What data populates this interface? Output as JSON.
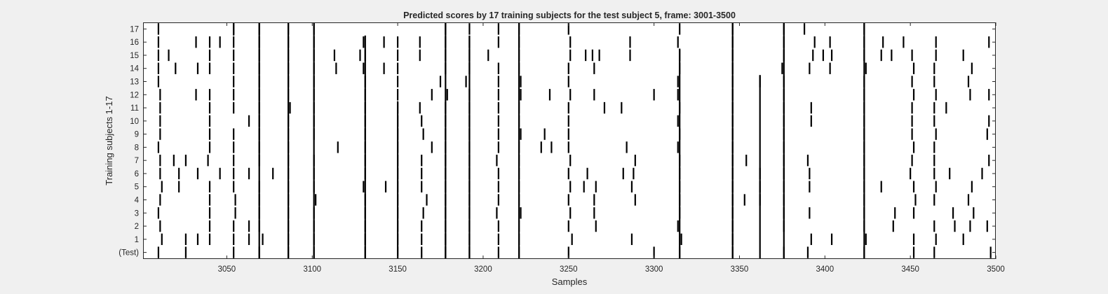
{
  "chart_data": {
    "type": "raster",
    "title": "Predicted scores by 17 training subjects for the test subject 5, frame: 3001-3500",
    "xlabel": "Samples",
    "ylabel": "Training subjects 1-17",
    "xlim": [
      3001,
      3500
    ],
    "xticks": [
      "3050",
      "3100",
      "3150",
      "3200",
      "3250",
      "3300",
      "3350",
      "3400",
      "3450",
      "3500"
    ],
    "rows": [
      "(Test)",
      "1",
      "2",
      "3",
      "4",
      "5",
      "6",
      "7",
      "8",
      "9",
      "10",
      "11",
      "12",
      "13",
      "14",
      "15",
      "16",
      "17"
    ],
    "grid": false,
    "colors": {
      "background": "#f0f0f0",
      "axes_bg": "#ffffff",
      "event": "#000000",
      "text": "#262626"
    },
    "long_events": [
      {
        "x": 3054,
        "from": 17,
        "to": 17
      },
      {
        "x": 3069,
        "from": 0,
        "to": 17
      },
      {
        "x": 3086,
        "from": 0,
        "to": 17
      },
      {
        "x": 3101,
        "from": 0,
        "to": 17
      },
      {
        "x": 3131,
        "from": 0,
        "to": 16
      },
      {
        "x": 3150,
        "from": 0,
        "to": 11
      },
      {
        "x": 3178,
        "from": 0,
        "to": 17
      },
      {
        "x": 3192,
        "from": 0,
        "to": 16
      },
      {
        "x": 3221,
        "from": 0,
        "to": 17
      },
      {
        "x": 3315,
        "from": 0,
        "to": 15
      },
      {
        "x": 3346,
        "from": 0,
        "to": 17
      },
      {
        "x": 3362,
        "from": 0,
        "to": 13
      },
      {
        "x": 3376,
        "from": 0,
        "to": 17
      },
      {
        "x": 3423,
        "from": 0,
        "to": 17
      }
    ],
    "events": [
      {
        "row": 0,
        "x": [
          3010,
          3026,
          3054,
          3069,
          3086,
          3101,
          3131,
          3150,
          3164,
          3178,
          3192,
          3209,
          3221,
          3250,
          3300,
          3315,
          3346,
          3376,
          3390,
          3423,
          3452,
          3464,
          3497
        ]
      },
      {
        "row": 1,
        "x": [
          3012,
          3026,
          3033,
          3040,
          3054,
          3063,
          3071,
          3086,
          3101,
          3131,
          3150,
          3164,
          3178,
          3192,
          3209,
          3221,
          3252,
          3287,
          3316,
          3346,
          3392,
          3404,
          3424,
          3452,
          3465,
          3481
        ]
      },
      {
        "row": 2,
        "x": [
          3011,
          3040,
          3054,
          3063,
          3069,
          3086,
          3101,
          3131,
          3150,
          3164,
          3178,
          3192,
          3209,
          3221,
          3250,
          3266,
          3314,
          3346,
          3376,
          3423,
          3440,
          3464,
          3476,
          3485,
          3495
        ]
      },
      {
        "row": 3,
        "x": [
          3010,
          3040,
          3055,
          3069,
          3086,
          3101,
          3131,
          3150,
          3165,
          3178,
          3192,
          3208,
          3222,
          3251,
          3265,
          3315,
          3346,
          3376,
          3391,
          3423,
          3441,
          3452,
          3475,
          3487
        ]
      },
      {
        "row": 4,
        "x": [
          3011,
          3040,
          3055,
          3069,
          3086,
          3102,
          3131,
          3150,
          3167,
          3178,
          3192,
          3209,
          3221,
          3250,
          3265,
          3289,
          3315,
          3346,
          3353,
          3362,
          3376,
          3423,
          3453,
          3464,
          3484
        ]
      },
      {
        "row": 5,
        "x": [
          3012,
          3022,
          3040,
          3054,
          3069,
          3086,
          3101,
          3130,
          3143,
          3150,
          3164,
          3178,
          3192,
          3209,
          3221,
          3251,
          3259,
          3266,
          3287,
          3315,
          3346,
          3362,
          3376,
          3391,
          3423,
          3433,
          3452,
          3465,
          3486
        ]
      },
      {
        "row": 6,
        "x": [
          3011,
          3022,
          3033,
          3046,
          3054,
          3063,
          3077,
          3086,
          3101,
          3131,
          3150,
          3164,
          3178,
          3192,
          3209,
          3221,
          3250,
          3261,
          3282,
          3288,
          3315,
          3346,
          3362,
          3376,
          3391,
          3423,
          3450,
          3464,
          3473,
          3492
        ]
      },
      {
        "row": 7,
        "x": [
          3011,
          3019,
          3026,
          3039,
          3054,
          3069,
          3086,
          3101,
          3131,
          3150,
          3164,
          3178,
          3192,
          3208,
          3221,
          3251,
          3289,
          3315,
          3346,
          3354,
          3376,
          3390,
          3423,
          3451,
          3464,
          3496
        ]
      },
      {
        "row": 8,
        "x": [
          3010,
          3040,
          3054,
          3069,
          3086,
          3115,
          3131,
          3150,
          3170,
          3178,
          3192,
          3209,
          3221,
          3234,
          3240,
          3250,
          3284,
          3314,
          3346,
          3376,
          3423,
          3452,
          3464
        ]
      },
      {
        "row": 9,
        "x": [
          3011,
          3040,
          3054,
          3069,
          3086,
          3101,
          3131,
          3150,
          3165,
          3178,
          3192,
          3209,
          3222,
          3236,
          3250,
          3315,
          3346,
          3376,
          3423,
          3451,
          3465,
          3495
        ]
      },
      {
        "row": 10,
        "x": [
          3011,
          3040,
          3063,
          3069,
          3086,
          3101,
          3131,
          3150,
          3164,
          3178,
          3192,
          3209,
          3221,
          3250,
          3314,
          3346,
          3376,
          3392,
          3423,
          3451,
          3464,
          3496
        ]
      },
      {
        "row": 11,
        "x": [
          3011,
          3040,
          3054,
          3069,
          3087,
          3101,
          3131,
          3150,
          3163,
          3178,
          3192,
          3209,
          3221,
          3250,
          3271,
          3281,
          3315,
          3346,
          3376,
          3392,
          3423,
          3451,
          3464,
          3471
        ]
      },
      {
        "row": 12,
        "x": [
          3011,
          3032,
          3040,
          3054,
          3069,
          3086,
          3101,
          3131,
          3150,
          3170,
          3179,
          3192,
          3209,
          3222,
          3239,
          3251,
          3265,
          3300,
          3314,
          3346,
          3376,
          3423,
          3452,
          3465,
          3485,
          3496
        ]
      },
      {
        "row": 13,
        "x": [
          3010,
          3054,
          3069,
          3086,
          3101,
          3131,
          3150,
          3175,
          3190,
          3209,
          3222,
          3250,
          3314,
          3346,
          3362,
          3376,
          3423,
          3451,
          3464,
          3484
        ]
      },
      {
        "row": 14,
        "x": [
          3010,
          3020,
          3033,
          3040,
          3054,
          3069,
          3086,
          3101,
          3114,
          3130,
          3142,
          3150,
          3178,
          3192,
          3209,
          3221,
          3250,
          3265,
          3315,
          3346,
          3375,
          3391,
          3403,
          3424,
          3452,
          3464,
          3486
        ]
      },
      {
        "row": 15,
        "x": [
          3010,
          3016,
          3040,
          3054,
          3069,
          3086,
          3101,
          3113,
          3128,
          3131,
          3150,
          3163,
          3178,
          3192,
          3203,
          3221,
          3251,
          3260,
          3264,
          3268,
          3286,
          3315,
          3346,
          3376,
          3393,
          3399,
          3404,
          3423,
          3433,
          3439,
          3451,
          3465,
          3481
        ]
      },
      {
        "row": 16,
        "x": [
          3010,
          3032,
          3040,
          3046,
          3054,
          3069,
          3086,
          3101,
          3130,
          3142,
          3150,
          3163,
          3178,
          3192,
          3209,
          3221,
          3251,
          3286,
          3314,
          3346,
          3376,
          3394,
          3403,
          3423,
          3434,
          3446,
          3465,
          3496
        ]
      },
      {
        "row": 17,
        "x": [
          3010,
          3054,
          3069,
          3086,
          3101,
          3178,
          3192,
          3209,
          3221,
          3250,
          3315,
          3346,
          3376,
          3388,
          3423
        ]
      }
    ]
  }
}
